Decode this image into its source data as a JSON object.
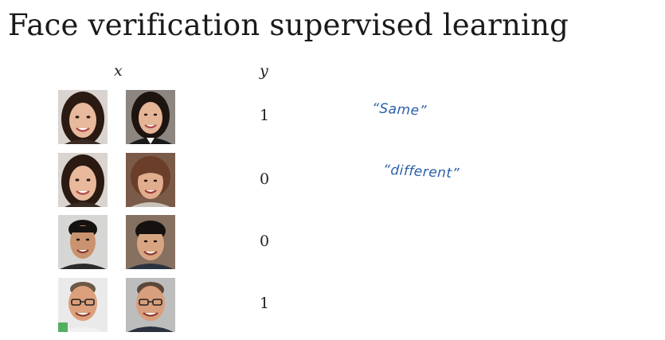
{
  "title": "Face verification supervised learning",
  "columns": {
    "x": "x",
    "y": "y"
  },
  "rows": [
    {
      "y": "1",
      "note": "“Same”"
    },
    {
      "y": "0",
      "note": "“different”"
    },
    {
      "y": "0"
    },
    {
      "y": "1"
    }
  ]
}
